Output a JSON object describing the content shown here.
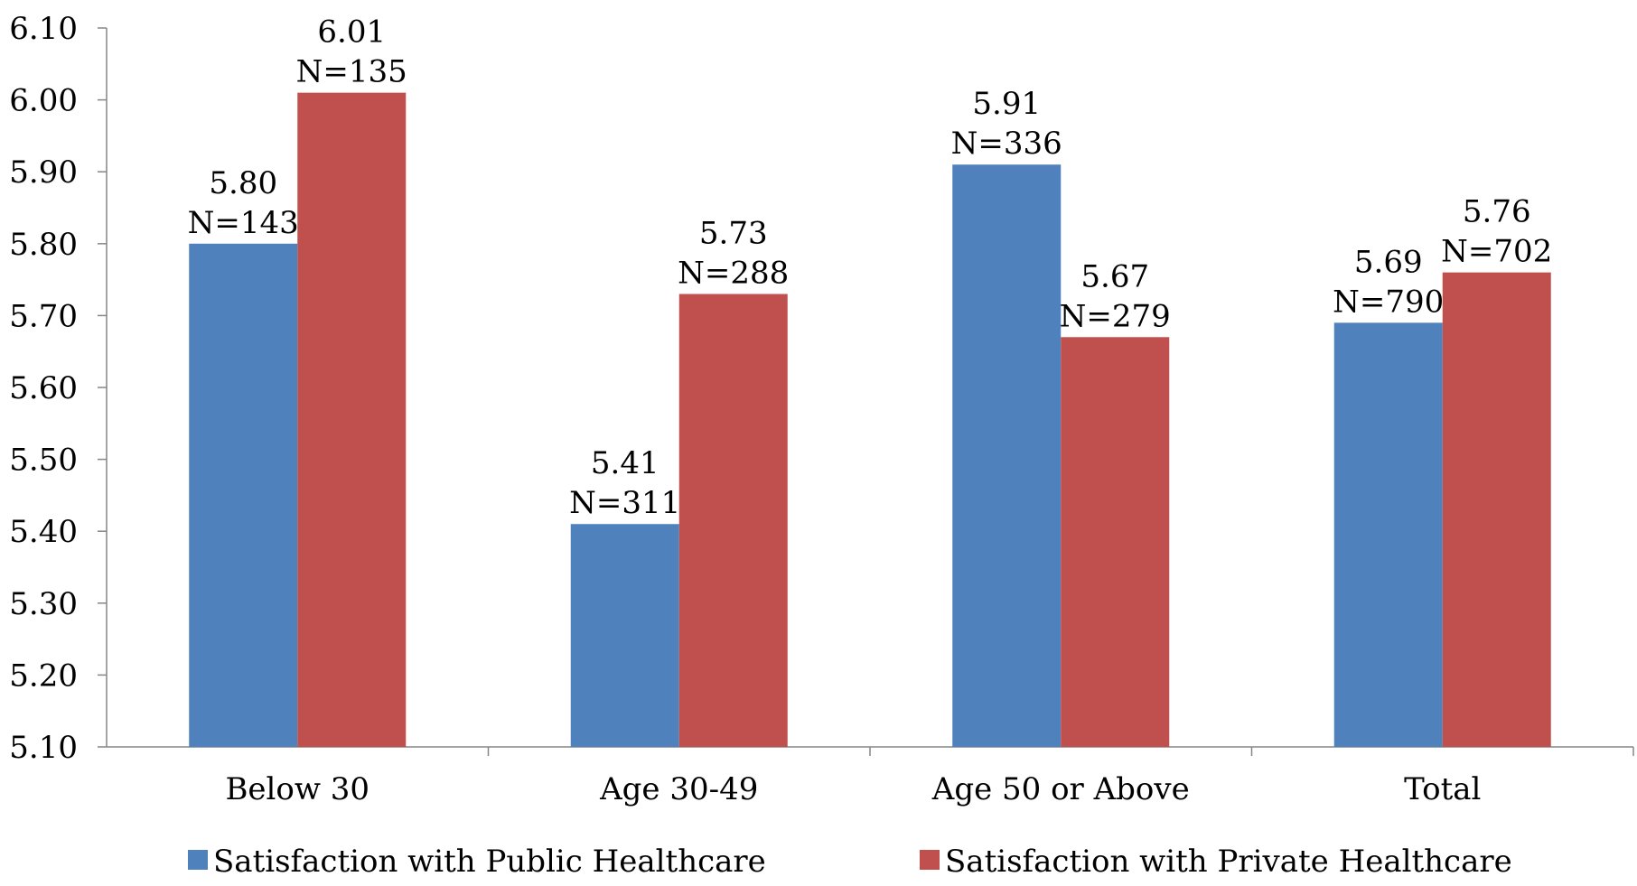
{
  "chart_data": {
    "type": "bar",
    "title": "",
    "xlabel": "",
    "ylabel": "",
    "ylim": [
      5.1,
      6.1
    ],
    "yticks": [
      "5.10",
      "5.20",
      "5.30",
      "5.40",
      "5.50",
      "5.60",
      "5.70",
      "5.80",
      "5.90",
      "6.00",
      "6.10"
    ],
    "categories": [
      "Below 30",
      "Age 30-49",
      "Age 50 or Above",
      "Total"
    ],
    "grid": false,
    "legend": "bottom",
    "series": [
      {
        "name": "Satisfaction with Public Healthcare",
        "color": "#4F81BD",
        "values": [
          5.8,
          5.41,
          5.91,
          5.69
        ],
        "value_labels": [
          "5.80",
          "5.41",
          "5.91",
          "5.69"
        ],
        "n_labels": [
          "N=143",
          "N=311",
          "N=336",
          "N=790"
        ]
      },
      {
        "name": "Satisfaction with Private Healthcare",
        "color": "#C0504D",
        "values": [
          6.01,
          5.73,
          5.67,
          5.76
        ],
        "value_labels": [
          "6.01",
          "5.73",
          "5.67",
          "5.76"
        ],
        "n_labels": [
          "N=135",
          "N=288",
          "N=279",
          "N=702"
        ]
      }
    ]
  }
}
